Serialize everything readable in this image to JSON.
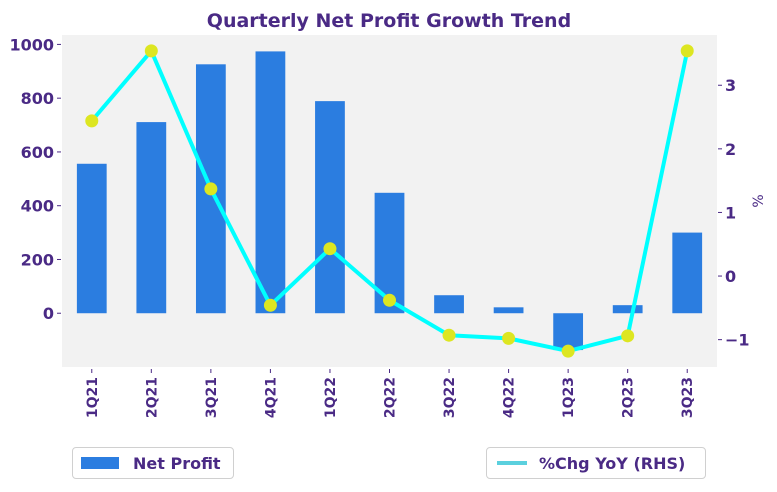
{
  "chart_data": {
    "type": "bar+line",
    "title": "Quarterly Net Profit Growth Trend",
    "categories": [
      "1Q21",
      "2Q21",
      "3Q21",
      "4Q21",
      "1Q22",
      "2Q22",
      "3Q22",
      "4Q22",
      "1Q23",
      "2Q23",
      "3Q23"
    ],
    "series": [
      {
        "name": "Net Profit",
        "type": "bar",
        "axis": "left",
        "color": "#2b7de0",
        "values": [
          556,
          711,
          926,
          974,
          789,
          448,
          67,
          22,
          -137,
          30,
          300
        ]
      },
      {
        "name": "%Chg YoY (RHS)",
        "type": "line",
        "axis": "right",
        "color": "#00ffff",
        "legend_color": "#5bd0de",
        "marker_color": "#dde621",
        "values": [
          2.44,
          3.54,
          1.37,
          -0.46,
          0.43,
          -0.38,
          -0.93,
          -0.98,
          -1.18,
          -0.94,
          3.54
        ]
      }
    ],
    "left_axis": {
      "ylim": [
        -200,
        1035
      ],
      "ticks": [
        0,
        200,
        400,
        600,
        800,
        1000
      ],
      "tick_labels": [
        "0",
        "200",
        "400",
        "600",
        "800",
        "1000"
      ],
      "label": ""
    },
    "right_axis": {
      "ylim": [
        -1.43,
        3.79
      ],
      "ticks": [
        -1,
        0,
        1,
        2,
        3
      ],
      "tick_labels": [
        "−1",
        "0",
        "1",
        "2",
        "3"
      ],
      "label": "%"
    },
    "xlabel": "",
    "grid": false,
    "background": "#f2f2f2",
    "legend": [
      {
        "label": "Net Profit",
        "placement": "bottom-left"
      },
      {
        "label": "%Chg YoY (RHS)",
        "placement": "bottom-right"
      }
    ]
  }
}
